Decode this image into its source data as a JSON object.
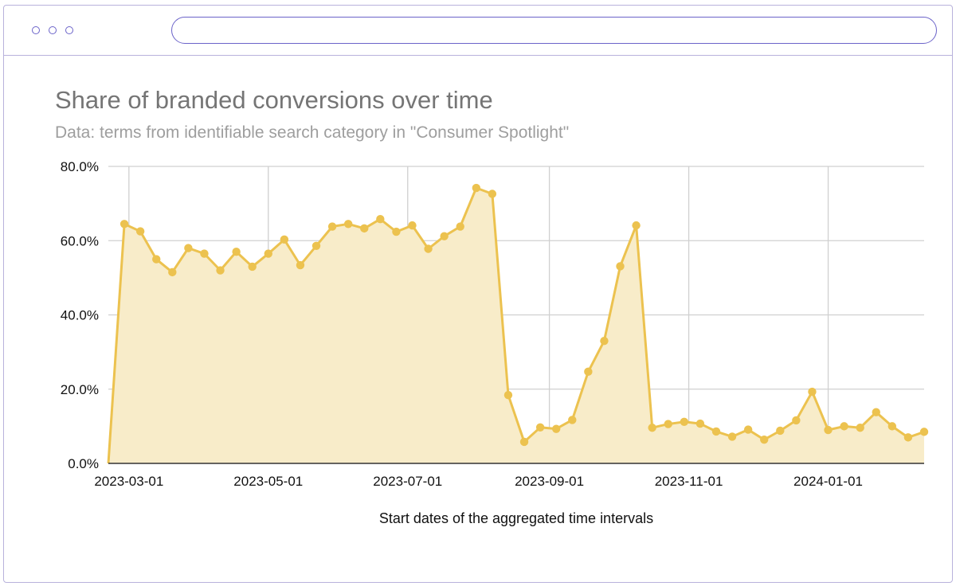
{
  "window": {
    "url": ""
  },
  "chart_data": {
    "type": "area",
    "title": "Share of branded conversions over time",
    "subtitle": "Data: terms from identifiable search category in \"Consumer Spotlight\"",
    "xlabel": "Start dates of the aggregated time intervals",
    "ylabel": "",
    "ylim": [
      0,
      80
    ],
    "xlim": [
      "2023-02-20",
      "2024-02-12"
    ],
    "y_ticks": [
      "0.0%",
      "20.0%",
      "40.0%",
      "60.0%",
      "80.0%"
    ],
    "y_tick_values": [
      0,
      20,
      40,
      60,
      80
    ],
    "x_ticks": [
      "2023-03-01",
      "2023-05-01",
      "2023-07-01",
      "2023-09-01",
      "2023-11-01",
      "2024-01-01"
    ],
    "grid": true,
    "legend": "none",
    "colors": {
      "line": "#ecc24f",
      "fill": "#f8ecc9",
      "grid": "#d0d0d0",
      "baseline": "#333333"
    },
    "series": [
      {
        "x": [
          "2023-02-20",
          "2023-02-27",
          "2023-03-06",
          "2023-03-13",
          "2023-03-20",
          "2023-03-27",
          "2023-04-03",
          "2023-04-10",
          "2023-04-17",
          "2023-04-24",
          "2023-05-01",
          "2023-05-08",
          "2023-05-15",
          "2023-05-22",
          "2023-05-29",
          "2023-06-05",
          "2023-06-12",
          "2023-06-19",
          "2023-06-26",
          "2023-07-03",
          "2023-07-10",
          "2023-07-17",
          "2023-07-24",
          "2023-07-31",
          "2023-08-07",
          "2023-08-14",
          "2023-08-21",
          "2023-08-28",
          "2023-09-04",
          "2023-09-11",
          "2023-09-18",
          "2023-09-25",
          "2023-10-02",
          "2023-10-09",
          "2023-10-16",
          "2023-10-23",
          "2023-10-30",
          "2023-11-06",
          "2023-11-13",
          "2023-11-20",
          "2023-11-27",
          "2023-12-04",
          "2023-12-11",
          "2023-12-18",
          "2023-12-25",
          "2024-01-01",
          "2024-01-08",
          "2024-01-15",
          "2024-01-22",
          "2024-01-29",
          "2024-02-05",
          "2024-02-12"
        ],
        "values": [
          0,
          64.5,
          62.5,
          55,
          51.5,
          58,
          56.5,
          52,
          57,
          53,
          56.5,
          60.3,
          53.4,
          58.6,
          63.8,
          64.5,
          63.3,
          65.8,
          62.4,
          64.1,
          57.8,
          61.2,
          63.8,
          74.2,
          72.6,
          18.4,
          5.8,
          9.7,
          9.3,
          11.7,
          24.7,
          33,
          53.1,
          64.1,
          9.6,
          10.6,
          11.2,
          10.7,
          8.6,
          7.2,
          9.1,
          6.4,
          8.8,
          11.6,
          19.3,
          9,
          10,
          9.6,
          13.8,
          10,
          7,
          8.5
        ]
      }
    ]
  }
}
